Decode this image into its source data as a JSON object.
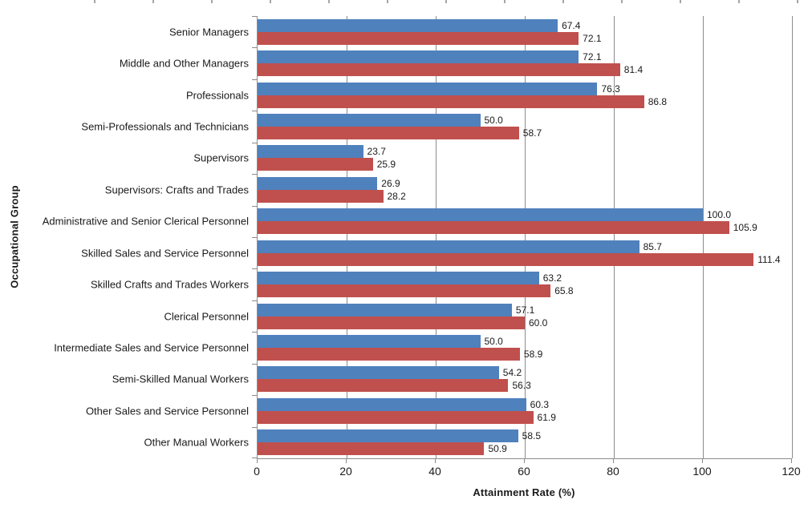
{
  "chart_data": {
    "type": "bar",
    "orientation": "horizontal",
    "xlabel": "Attainment Rate (%)",
    "ylabel": "Occupational Group",
    "xlim": [
      0,
      120
    ],
    "xticks": [
      0,
      20,
      40,
      60,
      80,
      100,
      120
    ],
    "grid": true,
    "legend": "none",
    "value_label_decimals": 1,
    "categories": [
      "Senior Managers",
      "Middle and Other Managers",
      "Professionals",
      "Semi-Professionals and Technicians",
      "Supervisors",
      "Supervisors: Crafts and Trades",
      "Administrative and Senior Clerical Personnel",
      "Skilled Sales and Service Personnel",
      "Skilled Crafts and Trades Workers",
      "Clerical Personnel",
      "Intermediate Sales and Service Personnel",
      "Semi-Skilled Manual Workers",
      "Other Sales and Service Personnel",
      "Other Manual Workers"
    ],
    "series": [
      {
        "key": "blue",
        "color": "#4F81BD",
        "values": [
          67.4,
          72.1,
          76.3,
          50.0,
          23.7,
          26.9,
          100.0,
          85.7,
          63.2,
          57.1,
          50.0,
          54.2,
          60.3,
          58.5
        ]
      },
      {
        "key": "red",
        "color": "#C0504D",
        "values": [
          72.1,
          81.4,
          86.8,
          58.7,
          25.9,
          28.2,
          105.9,
          111.4,
          65.8,
          60.0,
          58.9,
          56.3,
          61.9,
          50.9
        ]
      }
    ],
    "colors": {
      "axis": "#8C8C8C",
      "gridline": "#8C8C8C",
      "text": "#1A1A1A",
      "background": "#FFFFFF"
    }
  }
}
